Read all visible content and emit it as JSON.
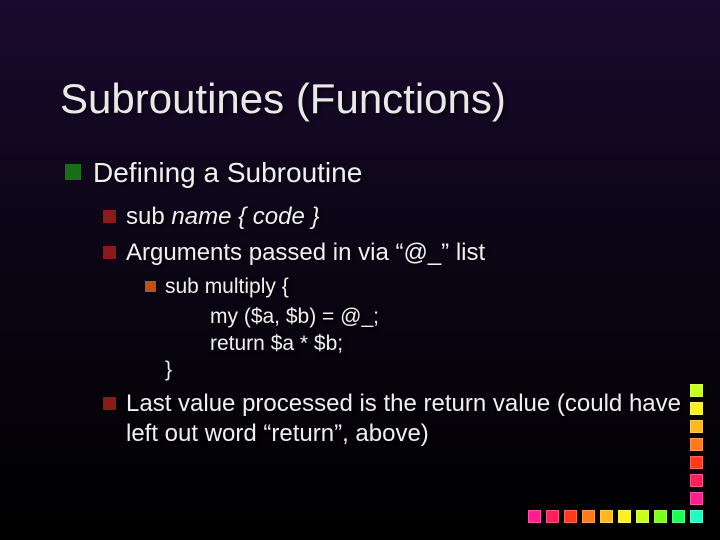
{
  "title": "Subroutines (Functions)",
  "l1": {
    "text": "Defining a Subroutine"
  },
  "l2a": {
    "prefix": "sub ",
    "italic": "name { code }"
  },
  "l2b": {
    "text": "Arguments passed in via “@_” list"
  },
  "l3a": {
    "text": "sub multiply {"
  },
  "code1": "my ($a, $b)  =  @_;",
  "code2": "return $a * $b;",
  "code3": "}",
  "l2c": {
    "text": "Last value processed is the return value (could have left out word “return”, above)"
  },
  "bullet_colors": {
    "l1": "#1a6b1a",
    "l2": "#8b1a1a",
    "l3": "#b8541a"
  },
  "deco": {
    "squares": [
      [
        "#ff1f8f",
        "#ff1f5a",
        "#ff3a1f",
        "#ff7a1f",
        "#ffb81f",
        "#fff01f",
        "#c8ff1f",
        "#7aff1f",
        "#1fff55",
        "#1fffc2"
      ],
      [
        "#ff1f8f"
      ],
      [
        "#ff1f5a"
      ],
      [
        "#ff3a1f"
      ],
      [
        "#ff7a1f"
      ],
      [
        "#ffb81f"
      ],
      [
        "#fff01f"
      ],
      [
        "#c8ff1f"
      ]
    ]
  }
}
